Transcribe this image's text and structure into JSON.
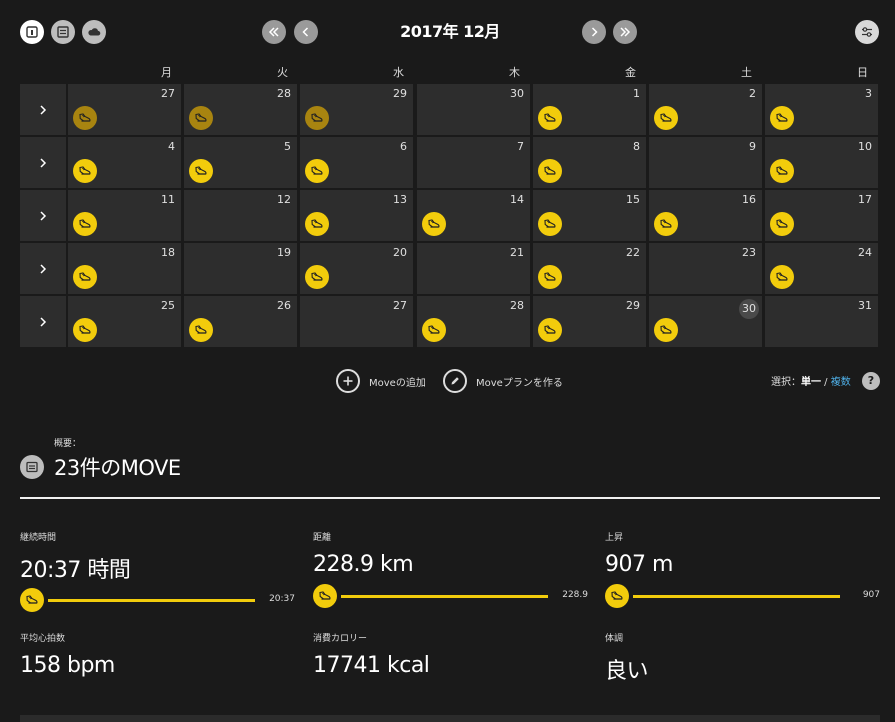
{
  "header": {
    "month_title": "2017年 12月",
    "view_buttons": [
      "calendar-view-icon",
      "list-view-icon",
      "cloud-icon"
    ],
    "nav": [
      "double-chevron-left-icon",
      "chevron-left-icon",
      "chevron-right-icon",
      "double-chevron-right-icon"
    ],
    "filter_icon": "sliders-icon"
  },
  "weekdays": [
    "月",
    "火",
    "水",
    "木",
    "金",
    "土",
    "日"
  ],
  "calendar": {
    "weeks": [
      {
        "days": [
          {
            "day": "27",
            "activity": "past"
          },
          {
            "day": "28",
            "activity": "past"
          },
          {
            "day": "29",
            "activity": "past"
          },
          {
            "day": "30",
            "activity": ""
          },
          {
            "day": "1",
            "activity": "run"
          },
          {
            "day": "2",
            "activity": "run"
          },
          {
            "day": "3",
            "activity": "run"
          }
        ]
      },
      {
        "days": [
          {
            "day": "4",
            "activity": "run"
          },
          {
            "day": "5",
            "activity": "run"
          },
          {
            "day": "6",
            "activity": "run"
          },
          {
            "day": "7",
            "activity": ""
          },
          {
            "day": "8",
            "activity": "run"
          },
          {
            "day": "9",
            "activity": ""
          },
          {
            "day": "10",
            "activity": "run"
          }
        ]
      },
      {
        "days": [
          {
            "day": "11",
            "activity": "run"
          },
          {
            "day": "12",
            "activity": ""
          },
          {
            "day": "13",
            "activity": "run"
          },
          {
            "day": "14",
            "activity": "run"
          },
          {
            "day": "15",
            "activity": "run"
          },
          {
            "day": "16",
            "activity": "run"
          },
          {
            "day": "17",
            "activity": "run"
          }
        ]
      },
      {
        "days": [
          {
            "day": "18",
            "activity": "run"
          },
          {
            "day": "19",
            "activity": ""
          },
          {
            "day": "20",
            "activity": "run"
          },
          {
            "day": "21",
            "activity": ""
          },
          {
            "day": "22",
            "activity": "run"
          },
          {
            "day": "23",
            "activity": ""
          },
          {
            "day": "24",
            "activity": "run"
          }
        ]
      },
      {
        "days": [
          {
            "day": "25",
            "activity": "run"
          },
          {
            "day": "26",
            "activity": "run"
          },
          {
            "day": "27",
            "activity": ""
          },
          {
            "day": "28",
            "activity": "run"
          },
          {
            "day": "29",
            "activity": "run"
          },
          {
            "day": "30",
            "activity": "run",
            "today": true
          },
          {
            "day": "31",
            "activity": ""
          }
        ]
      }
    ]
  },
  "actions": {
    "add_move": "Moveの追加",
    "create_plan": "Moveプランを作る",
    "select_prefix": "選択：",
    "select_single": "単一",
    "select_sep": " / ",
    "select_multi": "複数",
    "help": "?"
  },
  "summary": {
    "label": "概要：",
    "title": "23件のMOVE",
    "stats": [
      {
        "label": "継続時間",
        "value": "20:37",
        "unit": " 時間",
        "bar_value": "20:37",
        "fill": 1.0
      },
      {
        "label": "距離",
        "value": "228.9",
        "unit": " km",
        "bar_value": "228.9",
        "fill": 1.0
      },
      {
        "label": "上昇",
        "value": "907",
        "unit": " m",
        "bar_value": "907",
        "fill": 1.0
      },
      {
        "label": "平均心拍数",
        "value": "158",
        "unit": " bpm"
      },
      {
        "label": "消費カロリー",
        "value": "17741",
        "unit": " kcal"
      },
      {
        "label": "体調",
        "value": "良い",
        "unit": ""
      }
    ]
  },
  "colors": {
    "accent": "#f2cc0c",
    "accent_past": "#a88410",
    "background": "#1a1a1a",
    "cell": "#2d2d2d",
    "link": "#4fb0e8"
  }
}
